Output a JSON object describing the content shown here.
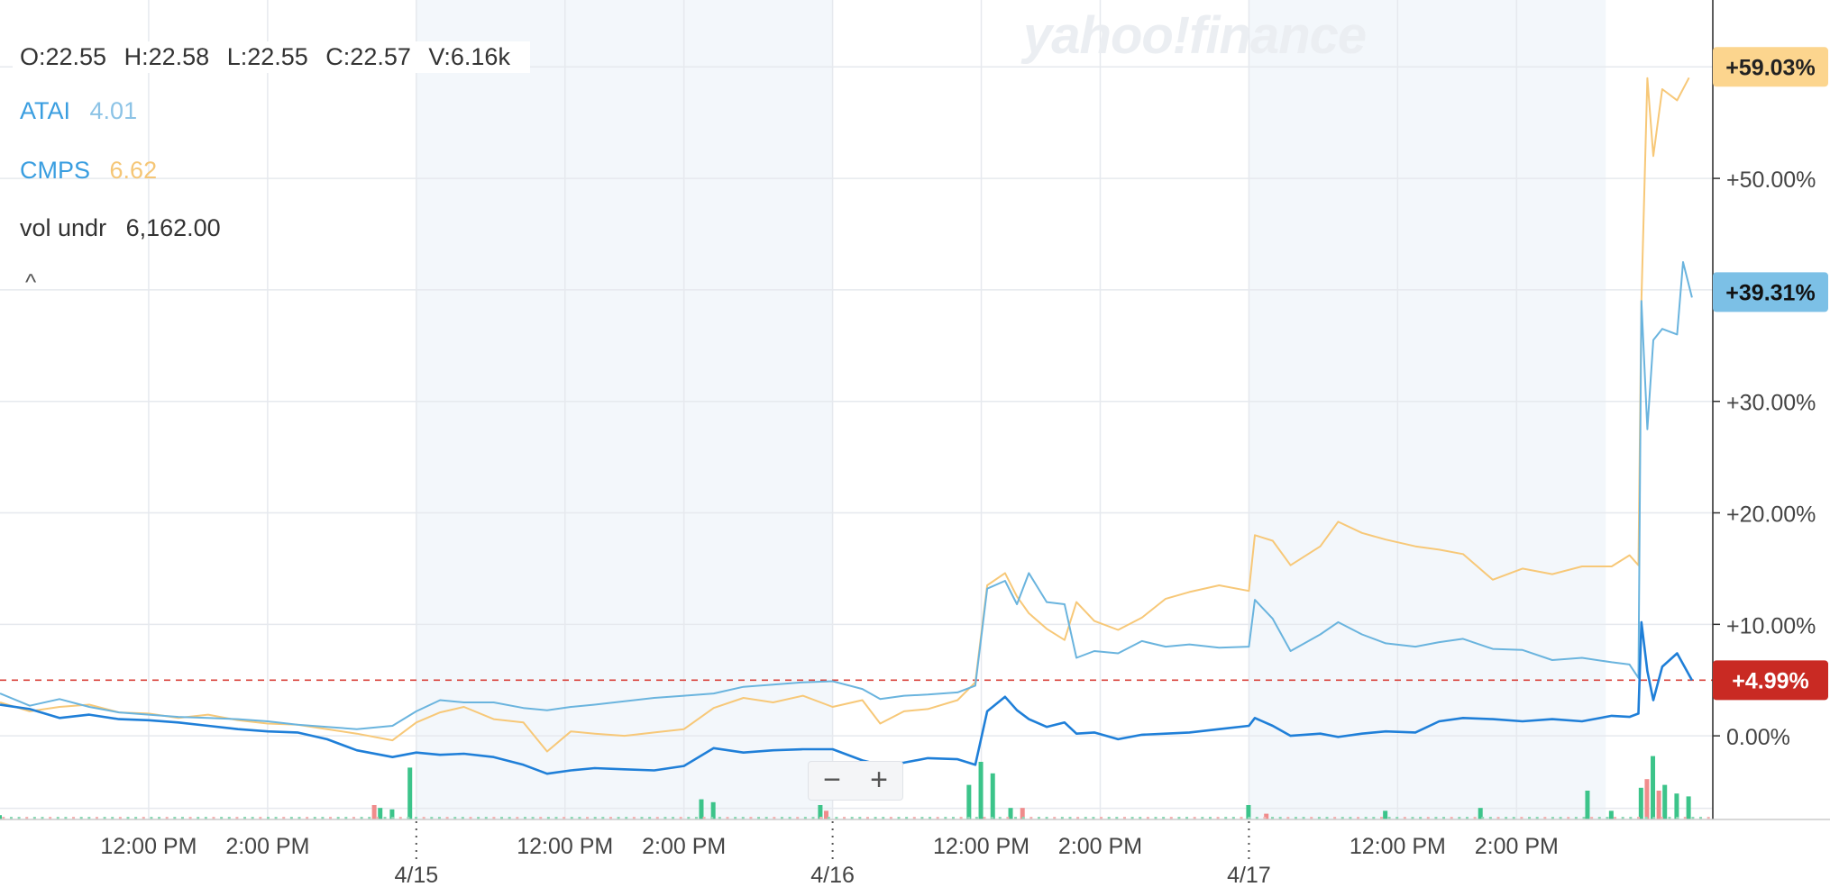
{
  "ohlc": {
    "open": "O:22.55",
    "high": "H:22.58",
    "low": "L:22.55",
    "close": "C:22.57",
    "volume": "V:6.16k"
  },
  "legend": [
    {
      "symbol": "ATAI",
      "value": "4.01",
      "symbol_color": "#3a9ee0",
      "value_color": "#8cc3e6"
    },
    {
      "symbol": "CMPS",
      "value": "6.62",
      "symbol_color": "#3a9ee0",
      "value_color": "#f5c676"
    }
  ],
  "indicator": {
    "label": "vol undr",
    "value": "6,162.00"
  },
  "collapse_glyph": "^",
  "watermark": "yahoo!finance",
  "zoom": {
    "minus": "−",
    "plus": "+"
  },
  "price_line_label": "+4.99%",
  "chart_data": {
    "type": "line",
    "x_tick_labels": [
      "12:00 PM",
      "2:00 PM",
      "12:00 PM",
      "2:00 PM",
      "12:00 PM",
      "2:00 PM",
      "12:00 PM",
      "2:00 PM"
    ],
    "x_tick_positions": [
      2.5,
      4.5,
      9.5,
      11.5,
      16.5,
      18.5,
      23.5,
      25.5
    ],
    "day_labels": [
      {
        "label": "4/15",
        "x": 7
      },
      {
        "label": "4/16",
        "x": 14
      },
      {
        "label": "4/17",
        "x": 21
      }
    ],
    "shaded_ranges": [
      [
        7,
        14
      ],
      [
        21,
        27
      ]
    ],
    "x_range": [
      0,
      28.8
    ],
    "y_axis": {
      "ticks": [
        0,
        10,
        20,
        30,
        50
      ],
      "tick_labels": [
        "0.00%",
        "+10.00%",
        "+20.00%",
        "+30.00%",
        "+50.00%"
      ],
      "range": [
        -7.5,
        66
      ]
    },
    "reference_line": 4.99,
    "series": [
      {
        "symbol": "CMPS",
        "color": "#f7c878",
        "end_label": "+59.03%",
        "end_value": 59.03,
        "points": [
          [
            0,
            3
          ],
          [
            0.5,
            2.2
          ],
          [
            1,
            2.6
          ],
          [
            1.5,
            2.8
          ],
          [
            2,
            2.1
          ],
          [
            2.5,
            2.0
          ],
          [
            3,
            1.6
          ],
          [
            3.5,
            1.9
          ],
          [
            4,
            1.4
          ],
          [
            4.5,
            1.1
          ],
          [
            5,
            1.0
          ],
          [
            5.5,
            0.6
          ],
          [
            6,
            0.2
          ],
          [
            6.6,
            -0.4
          ],
          [
            7,
            1.2
          ],
          [
            7.4,
            2.1
          ],
          [
            7.8,
            2.6
          ],
          [
            8.3,
            1.5
          ],
          [
            8.8,
            1.2
          ],
          [
            9.2,
            -1.4
          ],
          [
            9.6,
            0.4
          ],
          [
            10,
            0.2
          ],
          [
            10.5,
            0.0
          ],
          [
            11,
            0.3
          ],
          [
            11.5,
            0.6
          ],
          [
            12,
            2.5
          ],
          [
            12.5,
            3.4
          ],
          [
            13,
            3.0
          ],
          [
            13.5,
            3.6
          ],
          [
            14,
            2.6
          ],
          [
            14.5,
            3.2
          ],
          [
            14.8,
            1.1
          ],
          [
            15.2,
            2.2
          ],
          [
            15.6,
            2.4
          ],
          [
            16.1,
            3.2
          ],
          [
            16.4,
            4.8
          ],
          [
            16.6,
            13.5
          ],
          [
            16.9,
            14.6
          ],
          [
            17.1,
            12.5
          ],
          [
            17.3,
            11.0
          ],
          [
            17.6,
            9.6
          ],
          [
            17.9,
            8.6
          ],
          [
            18.1,
            12.0
          ],
          [
            18.4,
            10.3
          ],
          [
            18.8,
            9.5
          ],
          [
            19.2,
            10.6
          ],
          [
            19.6,
            12.3
          ],
          [
            20,
            12.9
          ],
          [
            20.5,
            13.5
          ],
          [
            21,
            13.0
          ],
          [
            21.1,
            18.0
          ],
          [
            21.4,
            17.5
          ],
          [
            21.7,
            15.3
          ],
          [
            22.2,
            17.0
          ],
          [
            22.5,
            19.2
          ],
          [
            22.9,
            18.2
          ],
          [
            23.3,
            17.6
          ],
          [
            23.8,
            17.0
          ],
          [
            24.2,
            16.7
          ],
          [
            24.6,
            16.3
          ],
          [
            25.1,
            14.0
          ],
          [
            25.6,
            15.0
          ],
          [
            26.1,
            14.5
          ],
          [
            26.6,
            15.2
          ],
          [
            27.1,
            15.2
          ],
          [
            27.4,
            16.2
          ],
          [
            27.55,
            15.3
          ],
          [
            27.6,
            39.0
          ],
          [
            27.7,
            59.0
          ],
          [
            27.8,
            52.0
          ],
          [
            27.95,
            58.0
          ],
          [
            28.2,
            57.0
          ],
          [
            28.4,
            59.03
          ]
        ]
      },
      {
        "symbol": "ATAI",
        "color": "#6ab4de",
        "end_label": "+39.31%",
        "end_value": 39.31,
        "points": [
          [
            0,
            3.8
          ],
          [
            0.5,
            2.7
          ],
          [
            1,
            3.3
          ],
          [
            1.5,
            2.6
          ],
          [
            2,
            2.1
          ],
          [
            2.5,
            1.9
          ],
          [
            3,
            1.7
          ],
          [
            3.5,
            1.6
          ],
          [
            4,
            1.5
          ],
          [
            4.5,
            1.3
          ],
          [
            5,
            1.0
          ],
          [
            5.5,
            0.8
          ],
          [
            6,
            0.6
          ],
          [
            6.6,
            0.9
          ],
          [
            7,
            2.2
          ],
          [
            7.4,
            3.2
          ],
          [
            7.8,
            3.0
          ],
          [
            8.3,
            3.0
          ],
          [
            8.8,
            2.5
          ],
          [
            9.2,
            2.3
          ],
          [
            9.6,
            2.6
          ],
          [
            10,
            2.8
          ],
          [
            10.5,
            3.1
          ],
          [
            11,
            3.4
          ],
          [
            11.5,
            3.6
          ],
          [
            12,
            3.8
          ],
          [
            12.5,
            4.4
          ],
          [
            13,
            4.6
          ],
          [
            13.5,
            4.8
          ],
          [
            14,
            4.9
          ],
          [
            14.5,
            4.2
          ],
          [
            14.8,
            3.3
          ],
          [
            15.2,
            3.6
          ],
          [
            15.6,
            3.7
          ],
          [
            16.1,
            3.9
          ],
          [
            16.4,
            4.5
          ],
          [
            16.6,
            13.2
          ],
          [
            16.9,
            13.9
          ],
          [
            17.1,
            11.8
          ],
          [
            17.3,
            14.6
          ],
          [
            17.6,
            12.0
          ],
          [
            17.9,
            11.8
          ],
          [
            18.1,
            7.0
          ],
          [
            18.4,
            7.6
          ],
          [
            18.8,
            7.4
          ],
          [
            19.2,
            8.5
          ],
          [
            19.6,
            8.0
          ],
          [
            20,
            8.2
          ],
          [
            20.5,
            7.9
          ],
          [
            21,
            8.0
          ],
          [
            21.1,
            12.2
          ],
          [
            21.4,
            10.5
          ],
          [
            21.7,
            7.6
          ],
          [
            22.2,
            9.1
          ],
          [
            22.5,
            10.2
          ],
          [
            22.9,
            9.1
          ],
          [
            23.3,
            8.3
          ],
          [
            23.8,
            8.0
          ],
          [
            24.2,
            8.4
          ],
          [
            24.6,
            8.7
          ],
          [
            25.1,
            7.8
          ],
          [
            25.6,
            7.7
          ],
          [
            26.1,
            6.8
          ],
          [
            26.6,
            7.0
          ],
          [
            27.1,
            6.6
          ],
          [
            27.4,
            6.4
          ],
          [
            27.55,
            5.2
          ],
          [
            27.6,
            39.0
          ],
          [
            27.7,
            27.5
          ],
          [
            27.8,
            35.5
          ],
          [
            27.95,
            36.5
          ],
          [
            28.2,
            36.0
          ],
          [
            28.3,
            42.5
          ],
          [
            28.45,
            39.31
          ]
        ]
      },
      {
        "symbol": "vol undr",
        "color": "#1f7fd8",
        "end_label": "+4.99%",
        "end_value": 4.99,
        "points": [
          [
            0,
            2.8
          ],
          [
            0.5,
            2.4
          ],
          [
            1,
            1.6
          ],
          [
            1.5,
            1.9
          ],
          [
            2,
            1.5
          ],
          [
            2.5,
            1.4
          ],
          [
            3,
            1.2
          ],
          [
            3.5,
            0.9
          ],
          [
            4,
            0.6
          ],
          [
            4.5,
            0.4
          ],
          [
            5,
            0.3
          ],
          [
            5.5,
            -0.3
          ],
          [
            6,
            -1.3
          ],
          [
            6.6,
            -1.9
          ],
          [
            7,
            -1.5
          ],
          [
            7.4,
            -1.7
          ],
          [
            7.8,
            -1.6
          ],
          [
            8.3,
            -1.9
          ],
          [
            8.8,
            -2.6
          ],
          [
            9.2,
            -3.4
          ],
          [
            9.6,
            -3.1
          ],
          [
            10,
            -2.9
          ],
          [
            10.5,
            -3.0
          ],
          [
            11,
            -3.1
          ],
          [
            11.5,
            -2.7
          ],
          [
            12,
            -1.1
          ],
          [
            12.5,
            -1.5
          ],
          [
            13,
            -1.3
          ],
          [
            13.5,
            -1.2
          ],
          [
            14,
            -1.2
          ],
          [
            14.5,
            -2.2
          ],
          [
            14.8,
            -2.6
          ],
          [
            15.2,
            -2.4
          ],
          [
            15.6,
            -2.0
          ],
          [
            16.1,
            -2.1
          ],
          [
            16.4,
            -2.6
          ],
          [
            16.6,
            2.2
          ],
          [
            16.9,
            3.5
          ],
          [
            17.1,
            2.3
          ],
          [
            17.3,
            1.5
          ],
          [
            17.6,
            0.8
          ],
          [
            17.9,
            1.2
          ],
          [
            18.1,
            0.2
          ],
          [
            18.4,
            0.3
          ],
          [
            18.8,
            -0.3
          ],
          [
            19.2,
            0.1
          ],
          [
            19.6,
            0.2
          ],
          [
            20,
            0.3
          ],
          [
            20.5,
            0.6
          ],
          [
            21,
            0.9
          ],
          [
            21.1,
            1.6
          ],
          [
            21.4,
            0.9
          ],
          [
            21.7,
            0.0
          ],
          [
            22.2,
            0.2
          ],
          [
            22.5,
            -0.1
          ],
          [
            22.9,
            0.2
          ],
          [
            23.3,
            0.4
          ],
          [
            23.8,
            0.3
          ],
          [
            24.2,
            1.3
          ],
          [
            24.6,
            1.6
          ],
          [
            25.1,
            1.5
          ],
          [
            25.6,
            1.3
          ],
          [
            26.1,
            1.5
          ],
          [
            26.6,
            1.3
          ],
          [
            27.1,
            1.8
          ],
          [
            27.4,
            1.7
          ],
          [
            27.55,
            2.0
          ],
          [
            27.6,
            10.2
          ],
          [
            27.7,
            5.8
          ],
          [
            27.8,
            3.2
          ],
          [
            27.95,
            6.2
          ],
          [
            28.2,
            7.4
          ],
          [
            28.45,
            4.99
          ]
        ]
      }
    ],
    "volume_bars": {
      "colors": {
        "up": "#3cc48a",
        "down": "#f08c8c"
      },
      "up": [
        [
          0,
          1.5
        ],
        [
          6.4,
          4
        ],
        [
          6.6,
          3.5
        ],
        [
          6.9,
          18
        ],
        [
          11.8,
          7
        ],
        [
          12.0,
          6
        ],
        [
          13.8,
          5
        ],
        [
          16.3,
          12
        ],
        [
          16.5,
          20
        ],
        [
          16.7,
          16
        ],
        [
          17.0,
          4
        ],
        [
          21.0,
          5
        ],
        [
          23.3,
          3
        ],
        [
          24.9,
          4
        ],
        [
          26.7,
          10
        ],
        [
          27.1,
          3
        ],
        [
          27.6,
          11
        ],
        [
          27.8,
          22
        ],
        [
          28.0,
          12
        ],
        [
          28.2,
          9
        ],
        [
          28.4,
          8
        ]
      ],
      "down": [
        [
          6.3,
          5
        ],
        [
          13.9,
          3
        ],
        [
          17.2,
          4
        ],
        [
          21.3,
          2
        ],
        [
          27.7,
          14
        ],
        [
          27.9,
          10
        ]
      ]
    }
  }
}
